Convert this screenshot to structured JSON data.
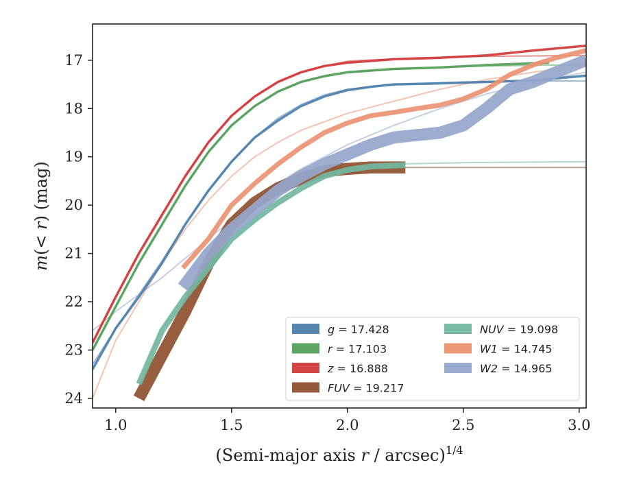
{
  "chart_data": {
    "type": "line",
    "title": "",
    "xlabel": "(Semi-major axis r / arcsec)^1/4",
    "xlabel_parts": {
      "prefix": "(Semi-major axis ",
      "var": "r",
      "suffix": " / arcsec)",
      "exponent": "1/4"
    },
    "ylabel": "m(< r) (mag)",
    "ylabel_parts": {
      "m": "m",
      "open": "(",
      "lt": "< ",
      "r": "r",
      "close": ") (mag)"
    },
    "xlim": [
      0.9,
      3.03
    ],
    "ylim": [
      24.2,
      16.25
    ],
    "y_inverted": true,
    "xticks": [
      1.0,
      1.5,
      2.0,
      2.5,
      3.0
    ],
    "xtick_labels": [
      "1.0",
      "1.5",
      "2.0",
      "2.5",
      "3.0"
    ],
    "yticks": [
      17,
      18,
      19,
      20,
      21,
      22,
      23,
      24
    ],
    "ytick_labels": [
      "17",
      "18",
      "19",
      "20",
      "21",
      "22",
      "23",
      "24"
    ],
    "grid": false,
    "legend_position": "lower-right",
    "series": [
      {
        "name": "g = 17.428",
        "band": "g",
        "value": "17.428",
        "color": "#4c7fab",
        "band_width": 0.05,
        "data": [
          [
            0.9,
            23.4
          ],
          [
            1.0,
            22.55
          ],
          [
            1.1,
            21.9
          ],
          [
            1.2,
            21.2
          ],
          [
            1.3,
            20.4
          ],
          [
            1.4,
            19.7
          ],
          [
            1.5,
            19.1
          ],
          [
            1.6,
            18.6
          ],
          [
            1.7,
            18.25
          ],
          [
            1.8,
            17.95
          ],
          [
            1.9,
            17.75
          ],
          [
            2.0,
            17.62
          ],
          [
            2.1,
            17.55
          ],
          [
            2.2,
            17.5
          ],
          [
            2.4,
            17.48
          ],
          [
            2.6,
            17.45
          ],
          [
            2.8,
            17.42
          ],
          [
            3.03,
            17.32
          ]
        ],
        "model": [
          [
            0.9,
            23.3
          ],
          [
            1.0,
            22.55
          ],
          [
            1.1,
            21.85
          ],
          [
            1.2,
            21.15
          ],
          [
            1.3,
            20.4
          ],
          [
            1.4,
            19.7
          ],
          [
            1.5,
            19.1
          ],
          [
            1.6,
            18.6
          ],
          [
            1.7,
            18.2
          ],
          [
            1.8,
            17.92
          ],
          [
            1.9,
            17.72
          ],
          [
            2.0,
            17.6
          ],
          [
            2.2,
            17.5
          ],
          [
            2.5,
            17.45
          ],
          [
            2.8,
            17.43
          ],
          [
            3.03,
            17.43
          ]
        ]
      },
      {
        "name": "r = 17.103",
        "band": "r",
        "value": "17.103",
        "color": "#55a05a",
        "band_width": 0.05,
        "data": [
          [
            0.9,
            23.0
          ],
          [
            1.0,
            22.1
          ],
          [
            1.1,
            21.2
          ],
          [
            1.2,
            20.4
          ],
          [
            1.3,
            19.6
          ],
          [
            1.4,
            18.9
          ],
          [
            1.5,
            18.35
          ],
          [
            1.6,
            17.95
          ],
          [
            1.7,
            17.65
          ],
          [
            1.8,
            17.45
          ],
          [
            1.9,
            17.33
          ],
          [
            2.0,
            17.25
          ],
          [
            2.2,
            17.18
          ],
          [
            2.4,
            17.15
          ],
          [
            2.6,
            17.1
          ],
          [
            2.87,
            17.05
          ]
        ],
        "model": [
          [
            0.9,
            23.0
          ],
          [
            1.0,
            22.1
          ],
          [
            1.1,
            21.2
          ],
          [
            1.2,
            20.4
          ],
          [
            1.3,
            19.6
          ],
          [
            1.4,
            18.9
          ],
          [
            1.5,
            18.35
          ],
          [
            1.6,
            17.95
          ],
          [
            1.7,
            17.65
          ],
          [
            1.8,
            17.45
          ],
          [
            1.9,
            17.33
          ],
          [
            2.0,
            17.25
          ],
          [
            2.3,
            17.16
          ],
          [
            2.6,
            17.12
          ],
          [
            2.87,
            17.1
          ],
          [
            3.03,
            17.1
          ]
        ]
      },
      {
        "name": "z = 16.888",
        "band": "z",
        "value": "16.888",
        "color": "#d2393a",
        "band_width": 0.05,
        "data": [
          [
            0.9,
            22.85
          ],
          [
            1.0,
            21.9
          ],
          [
            1.1,
            21.0
          ],
          [
            1.2,
            20.2
          ],
          [
            1.3,
            19.4
          ],
          [
            1.4,
            18.7
          ],
          [
            1.5,
            18.15
          ],
          [
            1.6,
            17.75
          ],
          [
            1.7,
            17.45
          ],
          [
            1.8,
            17.25
          ],
          [
            1.9,
            17.12
          ],
          [
            2.0,
            17.05
          ],
          [
            2.2,
            16.98
          ],
          [
            2.4,
            16.95
          ],
          [
            2.6,
            16.9
          ],
          [
            2.8,
            16.8
          ],
          [
            3.03,
            16.7
          ]
        ],
        "model": [
          [
            0.9,
            22.85
          ],
          [
            1.0,
            21.9
          ],
          [
            1.1,
            21.0
          ],
          [
            1.2,
            20.2
          ],
          [
            1.3,
            19.4
          ],
          [
            1.4,
            18.7
          ],
          [
            1.5,
            18.15
          ],
          [
            1.6,
            17.75
          ],
          [
            1.7,
            17.45
          ],
          [
            1.8,
            17.25
          ],
          [
            1.9,
            17.12
          ],
          [
            2.0,
            17.02
          ],
          [
            2.3,
            16.95
          ],
          [
            2.6,
            16.92
          ],
          [
            3.03,
            16.9
          ]
        ]
      },
      {
        "name": "FUV = 19.217",
        "band": "FUV",
        "value": "19.217",
        "color": "#8f5030",
        "band_width": 0.25,
        "data": [
          [
            1.1,
            24.0
          ],
          [
            1.2,
            23.1
          ],
          [
            1.3,
            22.2
          ],
          [
            1.4,
            21.2
          ],
          [
            1.5,
            20.4
          ],
          [
            1.6,
            19.95
          ],
          [
            1.7,
            19.65
          ],
          [
            1.8,
            19.45
          ],
          [
            1.9,
            19.3
          ],
          [
            2.0,
            19.25
          ],
          [
            2.1,
            19.22
          ],
          [
            2.25,
            19.22
          ]
        ],
        "model": [
          [
            1.9,
            19.22
          ],
          [
            2.2,
            19.22
          ],
          [
            2.6,
            19.22
          ],
          [
            3.03,
            19.22
          ]
        ]
      },
      {
        "name": "NUV = 19.098",
        "band": "NUV",
        "value": "19.098",
        "color": "#72b7a1",
        "band_width": 0.12,
        "data": [
          [
            1.1,
            23.7
          ],
          [
            1.2,
            22.6
          ],
          [
            1.3,
            21.9
          ],
          [
            1.4,
            21.3
          ],
          [
            1.5,
            20.7
          ],
          [
            1.6,
            20.3
          ],
          [
            1.7,
            19.95
          ],
          [
            1.8,
            19.65
          ],
          [
            1.9,
            19.4
          ],
          [
            2.0,
            19.27
          ],
          [
            2.1,
            19.2
          ],
          [
            2.25,
            19.17
          ]
        ],
        "model": [
          [
            1.9,
            19.3
          ],
          [
            2.0,
            19.22
          ],
          [
            2.2,
            19.15
          ],
          [
            2.5,
            19.12
          ],
          [
            3.03,
            19.1
          ]
        ]
      },
      {
        "name": "W1 = 14.745",
        "band": "W1",
        "value": "14.745",
        "color": "#eb9373",
        "band_width": 0.1,
        "data": [
          [
            1.29,
            21.3
          ],
          [
            1.4,
            20.7
          ],
          [
            1.5,
            20.0
          ],
          [
            1.6,
            19.55
          ],
          [
            1.7,
            19.15
          ],
          [
            1.8,
            18.8
          ],
          [
            1.9,
            18.5
          ],
          [
            2.0,
            18.3
          ],
          [
            2.1,
            18.15
          ],
          [
            2.2,
            18.08
          ],
          [
            2.3,
            18.0
          ],
          [
            2.4,
            17.93
          ],
          [
            2.5,
            17.8
          ],
          [
            2.6,
            17.6
          ],
          [
            2.7,
            17.3
          ],
          [
            2.8,
            17.1
          ],
          [
            2.9,
            16.95
          ],
          [
            3.03,
            16.8
          ]
        ],
        "model": [
          [
            0.9,
            24.0
          ],
          [
            1.0,
            22.8
          ],
          [
            1.1,
            22.0
          ],
          [
            1.2,
            21.2
          ],
          [
            1.3,
            20.5
          ],
          [
            1.4,
            19.9
          ],
          [
            1.5,
            19.4
          ],
          [
            1.6,
            19.0
          ],
          [
            1.7,
            18.7
          ],
          [
            1.8,
            18.45
          ],
          [
            2.0,
            18.1
          ],
          [
            2.2,
            17.85
          ],
          [
            2.4,
            17.6
          ],
          [
            2.6,
            17.4
          ],
          [
            2.8,
            17.25
          ],
          [
            3.03,
            17.1
          ]
        ]
      },
      {
        "name": "W2 = 14.965",
        "band": "W2",
        "value": "14.965",
        "color": "#96a6cb",
        "band_width": 0.25,
        "data": [
          [
            1.29,
            21.7
          ],
          [
            1.4,
            21.0
          ],
          [
            1.5,
            20.5
          ],
          [
            1.6,
            20.1
          ],
          [
            1.7,
            19.7
          ],
          [
            1.8,
            19.4
          ],
          [
            1.9,
            19.15
          ],
          [
            2.0,
            18.95
          ],
          [
            2.1,
            18.75
          ],
          [
            2.2,
            18.6
          ],
          [
            2.3,
            18.55
          ],
          [
            2.4,
            18.5
          ],
          [
            2.5,
            18.35
          ],
          [
            2.6,
            18.0
          ],
          [
            2.7,
            17.6
          ],
          [
            2.8,
            17.45
          ],
          [
            2.9,
            17.25
          ],
          [
            3.03,
            17.0
          ]
        ],
        "model": [
          [
            0.9,
            22.6
          ],
          [
            1.0,
            22.2
          ],
          [
            1.1,
            21.85
          ],
          [
            1.2,
            21.5
          ],
          [
            1.3,
            21.1
          ],
          [
            1.4,
            20.7
          ],
          [
            1.5,
            20.3
          ],
          [
            1.6,
            19.9
          ],
          [
            1.7,
            19.55
          ],
          [
            1.8,
            19.25
          ],
          [
            1.9,
            19.0
          ],
          [
            2.0,
            18.75
          ],
          [
            2.2,
            18.35
          ],
          [
            2.4,
            18.0
          ],
          [
            2.6,
            17.7
          ],
          [
            2.8,
            17.45
          ],
          [
            3.03,
            17.25
          ]
        ]
      }
    ]
  }
}
